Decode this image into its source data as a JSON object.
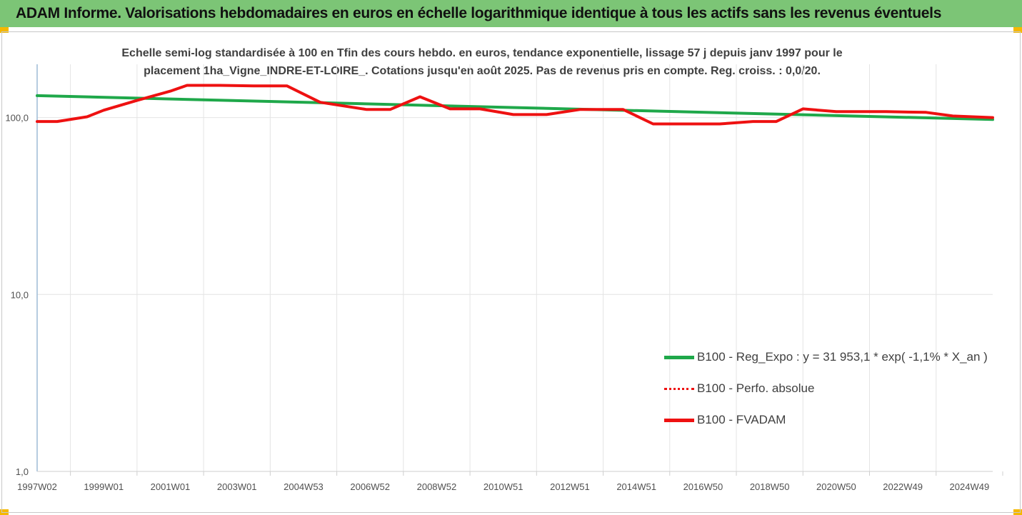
{
  "banner": {
    "title": "ADAM Informe. Valorisations hebdomadaires en euros en échelle logarithmique identique à tous les actifs sans les revenus éventuels"
  },
  "colors": {
    "banner_bg": "#7cc576",
    "corner": "#f5b800",
    "regression": "#1fa84a",
    "fvadam": "#ee1111",
    "perfo": "#ee1111",
    "grid": "#e4e4e4",
    "axis": "#9dbbd6"
  },
  "chart_data": {
    "type": "line",
    "title": "Echelle semi-log standardisée à 100 en Tfin des cours hebdo. en euros, tendance exponentielle, lissage 57 j depuis janv 1997 pour le placement 1ha_Vigne_INDRE-ET-LOIRE_. Cotations jusqu'en août 2025. Pas de revenus pris en compte. Reg. croiss. : 0,0/20.",
    "title_lines": [
      "Echelle semi-log standardisée à 100 en Tfin des cours hebdo. en euros, tendance exponentielle, lissage 57 j depuis janv 1997 pour le",
      "placement 1ha_Vigne_INDRE-ET-LOIRE_. Cotations jusqu'en août 2025. Pas de revenus pris en compte. Reg. croiss. : 0,0/20."
    ],
    "y_scale": "log",
    "ylim": [
      1,
      200
    ],
    "y_ticks": [
      {
        "value": 1,
        "label": "1,0"
      },
      {
        "value": 10,
        "label": "10,0"
      },
      {
        "value": 100,
        "label": "100,0"
      }
    ],
    "xlim": [
      1997.0,
      2025.7
    ],
    "x_ticks": [
      {
        "value": 1997.0,
        "label": "1997W02"
      },
      {
        "value": 1999.0,
        "label": "1999W01"
      },
      {
        "value": 2001.0,
        "label": "2001W01"
      },
      {
        "value": 2003.0,
        "label": "2003W01"
      },
      {
        "value": 2005.0,
        "label": "2004W53"
      },
      {
        "value": 2007.0,
        "label": "2006W52"
      },
      {
        "value": 2009.0,
        "label": "2008W52"
      },
      {
        "value": 2011.0,
        "label": "2010W51"
      },
      {
        "value": 2013.0,
        "label": "2012W51"
      },
      {
        "value": 2015.0,
        "label": "2014W51"
      },
      {
        "value": 2017.0,
        "label": "2016W50"
      },
      {
        "value": 2019.0,
        "label": "2018W50"
      },
      {
        "value": 2021.0,
        "label": "2020W50"
      },
      {
        "value": 2023.0,
        "label": "2022W49"
      },
      {
        "value": 2025.0,
        "label": "2024W49"
      }
    ],
    "grid": true,
    "legend_position": "right",
    "series": [
      {
        "name": "B100 - Reg_Expo : y = 31 953,1 * exp( -1,1% * X_an )",
        "color": "#1fa84a",
        "style": "solid",
        "points": [
          [
            1997.0,
            133
          ],
          [
            2025.7,
            97.5
          ]
        ]
      },
      {
        "name": "B100 - Perfo. absolue",
        "color": "#ee1111",
        "style": "dotted",
        "points": []
      },
      {
        "name": "B100 - FVADAM",
        "color": "#ee1111",
        "style": "solid",
        "points": [
          [
            1997.0,
            95
          ],
          [
            1997.6,
            95
          ],
          [
            1998.5,
            101
          ],
          [
            1999.0,
            110
          ],
          [
            2000.0,
            125
          ],
          [
            2001.0,
            141
          ],
          [
            2001.5,
            152
          ],
          [
            2002.5,
            152
          ],
          [
            2003.5,
            151
          ],
          [
            2004.5,
            151
          ],
          [
            2005.5,
            122
          ],
          [
            2006.9,
            111
          ],
          [
            2007.6,
            111
          ],
          [
            2008.5,
            131
          ],
          [
            2009.4,
            112
          ],
          [
            2010.3,
            112
          ],
          [
            2011.3,
            104
          ],
          [
            2012.3,
            104
          ],
          [
            2013.3,
            111
          ],
          [
            2014.6,
            111
          ],
          [
            2015.5,
            92
          ],
          [
            2017.5,
            92
          ],
          [
            2018.5,
            95
          ],
          [
            2019.2,
            95
          ],
          [
            2020.0,
            112
          ],
          [
            2021.0,
            108
          ],
          [
            2022.5,
            108
          ],
          [
            2023.7,
            107
          ],
          [
            2024.5,
            102
          ],
          [
            2025.7,
            100
          ]
        ]
      }
    ],
    "legend": [
      {
        "label": "B100 - Reg_Expo : y = 31 953,1 * exp( -1,1% * X_an )",
        "color": "#1fa84a",
        "style": "solid"
      },
      {
        "label": "B100 - Perfo. absolue",
        "color": "#ee1111",
        "style": "dotted"
      },
      {
        "label": "B100 - FVADAM",
        "color": "#ee1111",
        "style": "solid"
      }
    ]
  }
}
